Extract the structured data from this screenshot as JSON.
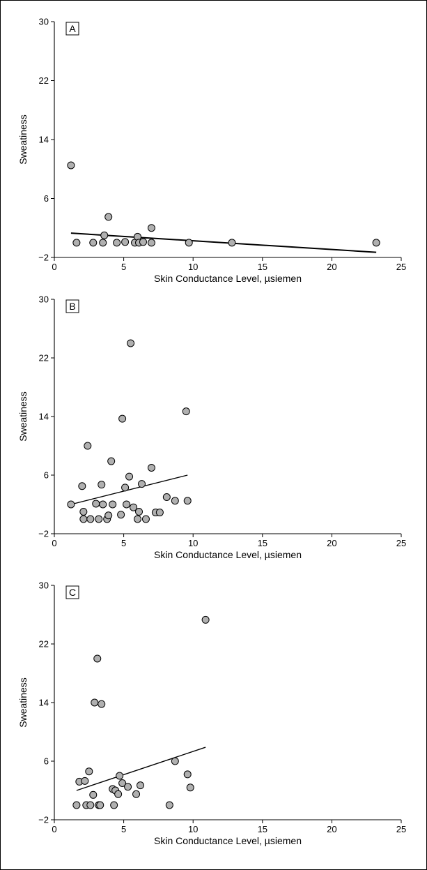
{
  "chart_data": [
    {
      "type": "scatter",
      "panel": "A",
      "xlabel": "Skin Conductance Level, µsiemen",
      "ylabel": "Sweatiness",
      "xlim": [
        0,
        25
      ],
      "ylim": [
        -2,
        30
      ],
      "xticks": [
        "0",
        "5",
        "10",
        "15",
        "20",
        "25"
      ],
      "yticks": [
        "−2",
        "6",
        "14",
        "22",
        "30"
      ],
      "points": [
        {
          "x": 1.2,
          "y": 10.5
        },
        {
          "x": 1.6,
          "y": 0
        },
        {
          "x": 2.8,
          "y": 0
        },
        {
          "x": 3.5,
          "y": 0
        },
        {
          "x": 3.6,
          "y": 1
        },
        {
          "x": 3.9,
          "y": 3.5
        },
        {
          "x": 4.5,
          "y": 0
        },
        {
          "x": 5.1,
          "y": 0.1
        },
        {
          "x": 5.8,
          "y": 0
        },
        {
          "x": 6.0,
          "y": 0.8
        },
        {
          "x": 6.1,
          "y": 0
        },
        {
          "x": 6.4,
          "y": 0.1
        },
        {
          "x": 7.0,
          "y": 2
        },
        {
          "x": 7.0,
          "y": 0
        },
        {
          "x": 9.7,
          "y": 0
        },
        {
          "x": 12.8,
          "y": 0
        },
        {
          "x": 23.2,
          "y": 0
        }
      ],
      "fit": {
        "x": [
          1.2,
          23.2
        ],
        "y": [
          1.3,
          -1.3
        ]
      }
    },
    {
      "type": "scatter",
      "panel": "B",
      "xlabel": "Skin Conductance Level, µsiemen",
      "ylabel": "Sweatiness",
      "xlim": [
        0,
        25
      ],
      "ylim": [
        -2,
        30
      ],
      "xticks": [
        "0",
        "5",
        "10",
        "15",
        "20",
        "25"
      ],
      "yticks": [
        "−2",
        "6",
        "14",
        "22",
        "30"
      ],
      "points": [
        {
          "x": 1.2,
          "y": 2
        },
        {
          "x": 2.0,
          "y": 4.5
        },
        {
          "x": 2.1,
          "y": 1
        },
        {
          "x": 2.1,
          "y": 0
        },
        {
          "x": 2.4,
          "y": 10
        },
        {
          "x": 2.6,
          "y": 0
        },
        {
          "x": 3.0,
          "y": 2.1
        },
        {
          "x": 3.2,
          "y": 0
        },
        {
          "x": 3.4,
          "y": 4.7
        },
        {
          "x": 3.5,
          "y": 2
        },
        {
          "x": 3.8,
          "y": 0
        },
        {
          "x": 3.9,
          "y": 0.5
        },
        {
          "x": 4.1,
          "y": 7.9
        },
        {
          "x": 4.2,
          "y": 2
        },
        {
          "x": 4.8,
          "y": 0.6
        },
        {
          "x": 4.9,
          "y": 13.7
        },
        {
          "x": 5.1,
          "y": 4.3
        },
        {
          "x": 5.2,
          "y": 2
        },
        {
          "x": 5.4,
          "y": 5.8
        },
        {
          "x": 5.5,
          "y": 24
        },
        {
          "x": 5.7,
          "y": 1.6
        },
        {
          "x": 6.0,
          "y": 0
        },
        {
          "x": 6.1,
          "y": 1
        },
        {
          "x": 6.3,
          "y": 4.8
        },
        {
          "x": 6.6,
          "y": 0
        },
        {
          "x": 7.0,
          "y": 7
        },
        {
          "x": 7.3,
          "y": 0.9
        },
        {
          "x": 7.6,
          "y": 0.9
        },
        {
          "x": 8.1,
          "y": 3
        },
        {
          "x": 8.7,
          "y": 2.5
        },
        {
          "x": 9.5,
          "y": 14.7
        },
        {
          "x": 9.6,
          "y": 2.5
        }
      ],
      "fit": {
        "x": [
          1.2,
          9.6
        ],
        "y": [
          2.0,
          6.0
        ]
      }
    },
    {
      "type": "scatter",
      "panel": "C",
      "xlabel": "Skin Conductance Level, µsiemen",
      "ylabel": "Sweatiness",
      "xlim": [
        0,
        25
      ],
      "ylim": [
        -2,
        30
      ],
      "xticks": [
        "0",
        "5",
        "10",
        "15",
        "20",
        "25"
      ],
      "yticks": [
        "−2",
        "6",
        "14",
        "22",
        "30"
      ],
      "points": [
        {
          "x": 1.6,
          "y": 0
        },
        {
          "x": 1.8,
          "y": 3.2
        },
        {
          "x": 2.2,
          "y": 3.3
        },
        {
          "x": 2.3,
          "y": 0
        },
        {
          "x": 2.5,
          "y": 4.6
        },
        {
          "x": 2.6,
          "y": 0
        },
        {
          "x": 2.8,
          "y": 1.4
        },
        {
          "x": 2.9,
          "y": 14
        },
        {
          "x": 3.1,
          "y": 20
        },
        {
          "x": 3.2,
          "y": 0
        },
        {
          "x": 3.4,
          "y": 13.8
        },
        {
          "x": 3.3,
          "y": 0
        },
        {
          "x": 4.2,
          "y": 2.2
        },
        {
          "x": 4.3,
          "y": 0
        },
        {
          "x": 4.4,
          "y": 2
        },
        {
          "x": 4.6,
          "y": 1.5
        },
        {
          "x": 4.7,
          "y": 4
        },
        {
          "x": 4.9,
          "y": 3
        },
        {
          "x": 5.3,
          "y": 2.5
        },
        {
          "x": 5.9,
          "y": 1.5
        },
        {
          "x": 6.2,
          "y": 2.7
        },
        {
          "x": 8.3,
          "y": 0
        },
        {
          "x": 8.7,
          "y": 6
        },
        {
          "x": 9.6,
          "y": 4.2
        },
        {
          "x": 9.8,
          "y": 2.4
        },
        {
          "x": 10.9,
          "y": 25.3
        }
      ],
      "fit": {
        "x": [
          1.6,
          10.9
        ],
        "y": [
          2.0,
          7.9
        ]
      }
    }
  ]
}
